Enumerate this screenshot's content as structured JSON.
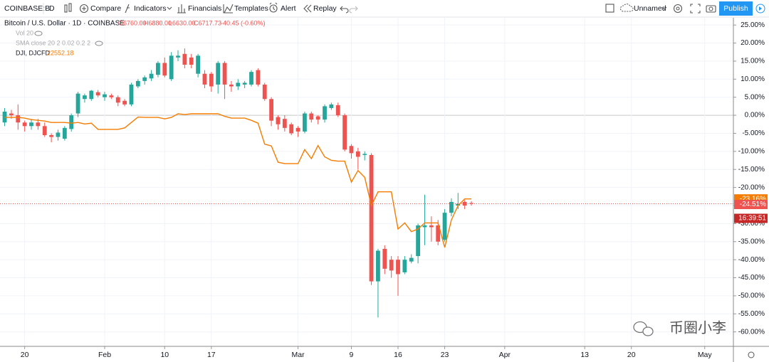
{
  "toolbar": {
    "symbol": "COINBASE:B",
    "interval": "D",
    "compare": "Compare",
    "indicators": "Indicators",
    "financials": "Financials",
    "templates": "Templates",
    "alert": "Alert",
    "replay": "Replay",
    "layout_name": "Unnamed",
    "publish": "Publish"
  },
  "legend": {
    "title": "Bitcoin / U.S. Dollar · 1D · COINBASE",
    "open": "O6760.00",
    "high": "H6880.00",
    "low": "L6630.00",
    "close": "C6717.73",
    "change": "-40.45 (-0.60%)",
    "volume": "Vol 20",
    "sma": "SMA close 20 2 0.02 0.2 2",
    "compare_value": "22552.18"
  },
  "watermark": "币圈小李",
  "chart_data": {
    "type": "candlestick",
    "x": [
      17,
      18,
      19,
      20,
      21,
      22,
      23,
      24,
      25,
      26,
      27,
      28,
      29,
      30,
      31,
      32,
      33,
      34,
      35,
      36,
      37,
      38,
      39,
      40,
      41,
      42,
      43,
      44,
      45,
      46,
      47,
      48,
      49,
      50,
      51,
      52,
      53,
      54,
      55,
      56,
      57,
      58,
      59,
      60,
      61,
      62,
      63,
      64,
      65,
      66,
      67,
      68,
      69,
      70,
      71,
      72,
      73,
      74,
      75,
      76,
      77,
      78,
      79,
      80,
      81,
      82,
      83,
      84,
      85,
      86,
      87
    ],
    "open": [
      -2,
      0.5,
      0,
      -2,
      -3,
      -2,
      -3,
      -5.5,
      -6,
      -6.5,
      -3.8,
      0.5,
      4.5,
      4.5,
      6.4,
      5,
      5.5,
      5,
      4,
      3,
      8,
      9.5,
      10.2,
      11.2,
      14.5,
      10,
      16,
      17,
      16,
      11.5,
      11.5,
      11.5,
      8.5,
      14.5,
      8.5,
      8,
      8.5,
      8.5,
      12.5,
      8.5,
      4.5,
      -0.5,
      -1,
      -2.5,
      -3.5,
      -4.5,
      0.5,
      -0.3,
      -1.2,
      2,
      2.8,
      0,
      -8.5,
      -10,
      -11,
      -11,
      -46,
      -37,
      -40,
      -40,
      -43.5,
      -40.5,
      -39,
      -31,
      -30.5,
      -30.5,
      -34.5,
      -27,
      -25,
      -24,
      -24.3
    ],
    "high": [
      2,
      1.5,
      3,
      -1.5,
      -1,
      -1,
      -2,
      -5,
      -4,
      -3,
      0.5,
      6.5,
      6,
      7,
      7,
      6.5,
      6,
      5.5,
      4.5,
      9,
      10,
      11,
      12.5,
      15,
      16,
      17.5,
      18,
      18.5,
      17,
      17,
      12.5,
      12,
      15,
      15,
      9.5,
      10,
      9.5,
      12.5,
      13,
      9,
      5,
      0,
      0,
      -2,
      -3,
      1,
      1,
      0,
      3,
      3.5,
      3.5,
      0.5,
      -8,
      -9,
      -10,
      -10.5,
      -37,
      -36,
      -39,
      -39,
      -39,
      -38.5,
      -30,
      -22,
      -28,
      -29,
      -26,
      -23,
      -21.5,
      -23.5,
      -23.8
    ],
    "low": [
      -3,
      -1,
      -4,
      -4.5,
      -4,
      -4,
      -6,
      -7.5,
      -7,
      -7,
      -4.5,
      -0.5,
      3.5,
      4,
      5,
      4,
      4.5,
      2.5,
      2.5,
      2.5,
      7.5,
      8.5,
      9.5,
      10.5,
      10.5,
      9.5,
      15,
      13,
      13,
      10.5,
      7.5,
      6.5,
      6,
      4.5,
      6.5,
      7,
      7.5,
      8,
      8,
      4,
      -3,
      -4,
      -4.5,
      -5.5,
      -6,
      -5,
      -2,
      -2.5,
      -2,
      1.5,
      -0.5,
      -10,
      -12,
      -15,
      -12.5,
      -47,
      -56,
      -44,
      -45,
      -50,
      -44,
      -41,
      -41,
      -36,
      -35,
      -36,
      -35,
      -28,
      -26,
      -26,
      -25
    ],
    "close": [
      1,
      0,
      -2,
      -3,
      -2,
      -3,
      -5.5,
      -6,
      -4.8,
      -3.5,
      0,
      6,
      5.5,
      6.8,
      5.5,
      5.8,
      5,
      3.5,
      3,
      8.5,
      9.5,
      10.5,
      11.5,
      14.5,
      11,
      16.5,
      16.5,
      14,
      14,
      16.5,
      8.5,
      8,
      14.5,
      8.5,
      8,
      9,
      9,
      12,
      8.5,
      4.5,
      -1.5,
      -2.5,
      -3.5,
      -5,
      -4.5,
      0.5,
      -1.2,
      -1.2,
      2.5,
      3,
      0,
      -9.5,
      -10.5,
      -11.5,
      -10.7,
      -46,
      -37.5,
      -42.5,
      -43,
      -44,
      -40,
      -39.5,
      -30.5,
      -30.5,
      -31,
      -35,
      -27,
      -24,
      -24.5,
      -25,
      -24.51
    ],
    "up_color": "#26a69a",
    "down_color": "#ef5350",
    "last_label": {
      "value": -24.51,
      "label": "-24.51%"
    },
    "countdown": "16:39:51",
    "series": [
      {
        "name": "DJI, DJCFD",
        "color": "#f57c00",
        "type": "line",
        "values": [
          -0.6,
          -0.6,
          -0.6,
          -0.8,
          -1.2,
          -1.4,
          -1.6,
          -2.0,
          -2.0,
          -2.0,
          -2.2,
          -2.0,
          -2.4,
          -2.2,
          -3.9,
          -3.9,
          -3.9,
          -3.9,
          -3.5,
          -2.0,
          -0.5,
          -0.6,
          -0.6,
          -0.6,
          -1.0,
          -0.6,
          0.4,
          0.2,
          0.4,
          0.4,
          0.4,
          0.4,
          0.4,
          -0.3,
          -0.8,
          -0.8,
          -0.8,
          -1.4,
          -2.2,
          -8.0,
          -8.5,
          -13.0,
          -13.4,
          -13.4,
          -13.4,
          -9.5,
          -12.0,
          -8.4,
          -11.5,
          -12.5,
          -12.7,
          -12.7,
          -18.5,
          -15.3,
          -17.2,
          -25.0,
          -21.2,
          -21.2,
          -21.2,
          -31.5,
          -29.8,
          -32.2,
          -31.5,
          -29.8,
          -29.8,
          -29.8,
          -36.6,
          -29.0,
          -25.0,
          -23.16,
          -23.16
        ],
        "last_label": {
          "value": -23.16,
          "label": "-23.16%"
        }
      }
    ],
    "xlim": [
      16.3,
      126.3
    ],
    "xticks": [
      {
        "value": 20,
        "label": "20"
      },
      {
        "value": 32,
        "label": "Feb"
      },
      {
        "value": 41,
        "label": "10"
      },
      {
        "value": 48,
        "label": "17"
      },
      {
        "value": 61,
        "label": "Mar"
      },
      {
        "value": 69,
        "label": "9"
      },
      {
        "value": 76,
        "label": "16"
      },
      {
        "value": 83,
        "label": "23"
      },
      {
        "value": 92,
        "label": "Apr"
      },
      {
        "value": 104,
        "label": "13"
      },
      {
        "value": 111,
        "label": "20"
      },
      {
        "value": 122,
        "label": "May"
      }
    ],
    "ylim": [
      -64,
      27
    ],
    "yticks": [
      {
        "value": 25,
        "label": "25.00%"
      },
      {
        "value": 20,
        "label": "20.00%"
      },
      {
        "value": 15,
        "label": "15.00%"
      },
      {
        "value": 10,
        "label": "10.00%"
      },
      {
        "value": 5,
        "label": "5.00%"
      },
      {
        "value": 0,
        "label": "0.00%"
      },
      {
        "value": -5,
        "label": "-5.00%"
      },
      {
        "value": -10,
        "label": "-10.00%"
      },
      {
        "value": -15,
        "label": "-15.00%"
      },
      {
        "value": -20,
        "label": "-20.00%"
      },
      {
        "value": -25,
        "label": "-25.00%"
      },
      {
        "value": -30,
        "label": "-30.00%"
      },
      {
        "value": -35,
        "label": "-35.00%"
      },
      {
        "value": -40,
        "label": "-40.00%"
      },
      {
        "value": -45,
        "label": "-45.00%"
      },
      {
        "value": -50,
        "label": "-50.00%"
      },
      {
        "value": -55,
        "label": "-55.00%"
      },
      {
        "value": -60,
        "label": "-60.00%"
      }
    ],
    "grid": true
  }
}
